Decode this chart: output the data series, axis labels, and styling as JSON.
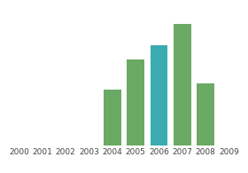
{
  "categories": [
    "2000",
    "2001",
    "2002",
    "2003",
    "2004",
    "2005",
    "2006",
    "2007",
    "2008",
    "2009"
  ],
  "values": [
    0,
    0,
    0,
    0,
    38,
    58,
    68,
    82,
    42,
    0
  ],
  "bar_colors": [
    "#6aaa64",
    "#6aaa64",
    "#6aaa64",
    "#6aaa64",
    "#6aaa64",
    "#6aaa64",
    "#3aabb0",
    "#6aaa64",
    "#6aaa64",
    "#6aaa64"
  ],
  "ylim": [
    0,
    95
  ],
  "background_color": "#ffffff",
  "grid_color": "#d8d8d8",
  "bar_width": 0.75,
  "tick_fontsize": 6.5,
  "tick_color": "#444444"
}
